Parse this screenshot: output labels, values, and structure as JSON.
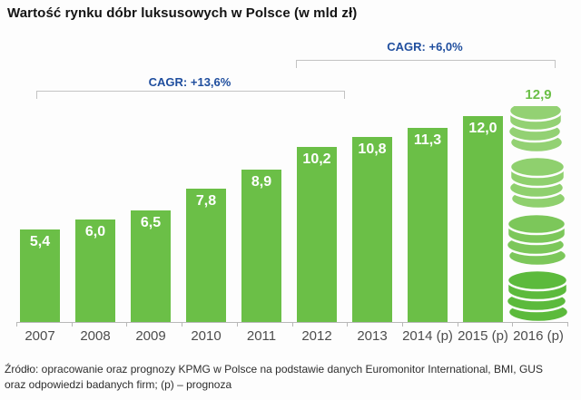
{
  "title": "Wartość rynku dóbr luksusowych w Polsce (w mld zł)",
  "footer": {
    "line1": "Źródło: opracowanie oraz prognozy KPMG w Polsce na podstawie danych Euromonitor International, BMI, GUS",
    "line2": "oraz odpowiedzi badanych firm; (p) – prognoza"
  },
  "chart_data": {
    "type": "bar",
    "title": "Wartość rynku dóbr luksusowych w Polsce (w mld zł)",
    "unit": "mld zł",
    "categories": [
      "2007",
      "2008",
      "2009",
      "2010",
      "2011",
      "2012",
      "2013",
      "2014 (p)",
      "2015 (p)",
      "2016 (p)"
    ],
    "values": [
      5.4,
      6.0,
      6.5,
      7.8,
      8.9,
      10.2,
      10.8,
      11.3,
      12.0,
      12.9
    ],
    "value_labels": [
      "5,4",
      "6,0",
      "6,5",
      "7,8",
      "8,9",
      "10,2",
      "10,8",
      "11,3",
      "12,0",
      "12,9"
    ],
    "last_category_style": "coin-stack",
    "annotations": [
      {
        "label": "CAGR: +13,6%",
        "from": "2007",
        "to": "2012"
      },
      {
        "label": "CAGR: +6,0%",
        "from": "2012",
        "to": "2016 (p)"
      }
    ],
    "ylim": [
      0,
      13.5
    ],
    "grid": false,
    "legend": "none",
    "xlabel": "",
    "ylabel": ""
  },
  "colors": {
    "bar_green": "#6bbf47",
    "coin_greens": [
      "#93d173",
      "#8fd06e",
      "#7cc75a",
      "#5cba3c"
    ],
    "value_label_white": "#ffffff",
    "cagr_blue": "#1f4e9e",
    "bracket_gray": "#c3c3c3",
    "axis_gray": "#b8b8b8",
    "year_label_gray": "#4d4d4d",
    "title_color": "#141414",
    "footer_color": "#2d2d2d",
    "background": "#fdfdfd"
  }
}
